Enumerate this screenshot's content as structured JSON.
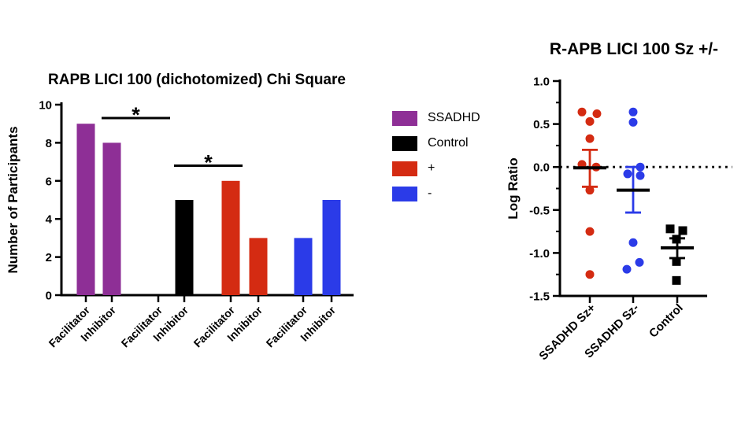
{
  "page": {
    "background": "#ffffff"
  },
  "legend": {
    "items": [
      {
        "label": "SSADHD",
        "color": "#8E2F96"
      },
      {
        "label": "Control",
        "color": "#000000"
      },
      {
        "label": "+",
        "color": "#D42B12"
      },
      {
        "label": "-",
        "color": "#2B3BE8"
      }
    ]
  },
  "chart_data": [
    {
      "type": "bar",
      "title": "RAPB LICI 100 (dichotomized) Chi Square",
      "xlabel": "",
      "ylabel": "Number of Participants",
      "ylim": [
        0,
        10
      ],
      "yticks": [
        0,
        2,
        4,
        6,
        8,
        10
      ],
      "categories": [
        "Facilitator",
        "Inhibitor",
        "Facilitator",
        "Inhibitor",
        "Facilitator",
        "Inhibitor",
        "Facilitator",
        "Inhibitor"
      ],
      "groups": [
        "SSADHD",
        "SSADHD",
        "Control",
        "Control",
        "+",
        "+",
        "-",
        "-"
      ],
      "values": [
        9,
        8,
        0,
        5,
        6,
        3,
        3,
        5
      ],
      "bar_colors": [
        "#8E2F96",
        "#8E2F96",
        "#000000",
        "#000000",
        "#D42B12",
        "#D42B12",
        "#2B3BE8",
        "#2B3BE8"
      ],
      "significance": [
        {
          "label": "*",
          "from": 1,
          "to": 2,
          "y": 9.3
        },
        {
          "label": "*",
          "from": 3,
          "to": 4,
          "y": 6.8
        }
      ],
      "grid": false,
      "legend_position": "right"
    },
    {
      "type": "scatter",
      "title": "R-APB LICI 100 Sz +/-",
      "xlabel": "",
      "ylabel": "Log Ratio",
      "ylim": [
        -1.5,
        1.0
      ],
      "yticks": [
        1.0,
        0.5,
        0.0,
        -0.5,
        -1.0,
        -1.5
      ],
      "yticks_minor": [
        0.75,
        0.25,
        -0.25,
        -0.75,
        -1.25
      ],
      "zero_line": "dotted",
      "categories": [
        "SSADHD Sz+",
        "SSADHD Sz-",
        "Control"
      ],
      "series": [
        {
          "name": "SSADHD Sz+",
          "marker": "circle",
          "color": "#D42B12",
          "values": [
            0.64,
            0.62,
            0.53,
            0.33,
            0.03,
            0.0,
            -0.27,
            -0.75,
            -1.25
          ],
          "x_offsets": [
            -10,
            9,
            0,
            0,
            -10,
            8,
            0,
            0,
            0
          ],
          "mean": -0.01,
          "err_top": 0.2,
          "err_bottom": -0.23
        },
        {
          "name": "SSADHD Sz-",
          "marker": "circle",
          "color": "#2B3BE8",
          "values": [
            0.64,
            0.52,
            0.0,
            -0.08,
            -0.1,
            -0.88,
            -1.19,
            -1.11
          ],
          "x_offsets": [
            0,
            0,
            9,
            -7,
            9,
            0,
            -8,
            8
          ],
          "mean": -0.27,
          "err_top": 0.0,
          "err_bottom": -0.53
        },
        {
          "name": "Control",
          "marker": "square",
          "color": "#000000",
          "values": [
            -0.72,
            -0.74,
            -0.84,
            -1.1,
            -1.32
          ],
          "x_offsets": [
            -9,
            7,
            -1,
            -1,
            -1
          ],
          "mean": -0.94,
          "err_top": -0.83,
          "err_bottom": -1.06
        }
      ],
      "grid": false
    }
  ]
}
